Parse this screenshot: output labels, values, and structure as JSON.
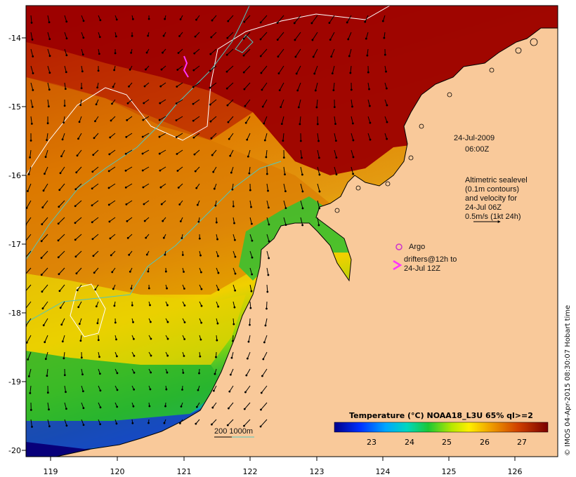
{
  "map": {
    "lon_ticks": [
      "119",
      "120",
      "121",
      "122",
      "123",
      "124",
      "125",
      "126"
    ],
    "lat_ticks": [
      "-14",
      "-15",
      "-16",
      "-17",
      "-18",
      "-19",
      "-20"
    ],
    "timestamp_date": "24-Jul-2009",
    "timestamp_time": "06:00Z"
  },
  "legend": {
    "line1": "Altimetric sealevel",
    "line2": "(0.1m contours)",
    "line3": "and velocity for",
    "line4": "24-Jul 06Z",
    "line5": "0.5m/s (1kt 24h)",
    "argo_label": "Argo",
    "drifter_line1": "drifters@12h to",
    "drifter_line2": "24-Jul 12Z",
    "depth_label": "200  1000m"
  },
  "colorbar": {
    "title": "Temperature (°C) NOAA18_L3U 65% ql>=2",
    "ticks": [
      "23",
      "24",
      "25",
      "26",
      "27"
    ]
  },
  "credit": "© IMOS 04-Apr-2015 08:30:07 Hobart time",
  "colors": {
    "land": "#f9c99a",
    "warm": "#9a0000",
    "orange": "#e07b00",
    "drifter": "#ff33ff",
    "contour200": "#4fc8c0"
  }
}
